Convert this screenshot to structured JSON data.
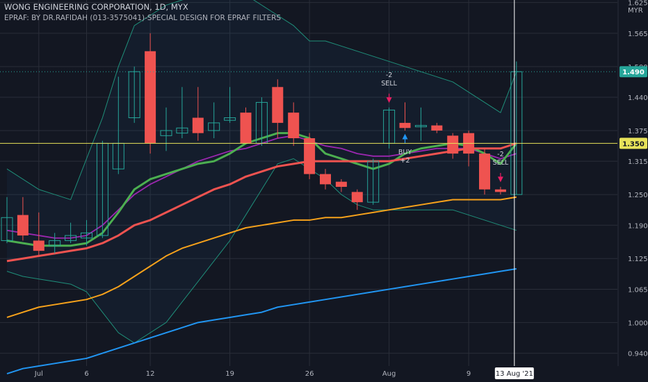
{
  "header": {
    "title": "WONG ENGINEERING CORPORATION, 1D, MYX",
    "subtitle": "EPRAF: BY DR.RAFIDAH (013-3575041)-SPECIAL DESIGN FOR EPRAF FILTERS"
  },
  "currency": "MYR",
  "colors": {
    "background": "#131722",
    "grid": "#2a2e39",
    "text": "#b2b5be",
    "up": "#26a69a",
    "down": "#ef5350",
    "bb_bands": "#1f8f7a",
    "ema_fast": "#4caf50",
    "ema_mid": "#ef5350",
    "ema_slow": "#9c27b0",
    "ma_orange": "#f7a21b",
    "ma_blue": "#2196f3",
    "price_line": "#e8e35a",
    "crosshair": "#ffffff"
  },
  "chart_data": {
    "type": "candlestick",
    "title": "WONG ENGINEERING CORPORATION, 1D, MYX",
    "subtitle": "EPRAF: BY DR.RAFIDAH (013-3575041)-SPECIAL DESIGN FOR EPRAF FILTERS",
    "ylim": [
      0.915,
      1.63
    ],
    "y_ticks": [
      "0.940",
      "1.000",
      "1.065",
      "1.125",
      "1.190",
      "1.250",
      "1.315",
      "1.375",
      "1.440",
      "1.500",
      "1.565",
      "1.625"
    ],
    "x_labels": [
      "Jul",
      "6",
      "12",
      "19",
      "26",
      "Aug",
      "9"
    ],
    "x_label_dates": [
      "2021-07-01",
      "2021-07-06",
      "2021-07-12",
      "2021-07-19",
      "2021-07-26",
      "2021-08-02",
      "2021-08-09"
    ],
    "candles": [
      {
        "date": "2021-06-29",
        "open": 1.16,
        "high": 1.245,
        "low": 1.155,
        "close": 1.205
      },
      {
        "date": "2021-06-30",
        "open": 1.21,
        "high": 1.245,
        "low": 1.16,
        "close": 1.17
      },
      {
        "date": "2021-07-01",
        "open": 1.16,
        "high": 1.215,
        "low": 1.13,
        "close": 1.14
      },
      {
        "date": "2021-07-02",
        "open": 1.15,
        "high": 1.175,
        "low": 1.135,
        "close": 1.16
      },
      {
        "date": "2021-07-05",
        "open": 1.16,
        "high": 1.195,
        "low": 1.155,
        "close": 1.17
      },
      {
        "date": "2021-07-06",
        "open": 1.165,
        "high": 1.2,
        "low": 1.15,
        "close": 1.175
      },
      {
        "date": "2021-07-07",
        "open": 1.17,
        "high": 1.355,
        "low": 1.165,
        "close": 1.35
      },
      {
        "date": "2021-07-08",
        "open": 1.3,
        "high": 1.48,
        "low": 1.29,
        "close": 1.35
      },
      {
        "date": "2021-07-09",
        "open": 1.4,
        "high": 1.5,
        "low": 1.39,
        "close": 1.49
      },
      {
        "date": "2021-07-12",
        "open": 1.53,
        "high": 1.565,
        "low": 1.33,
        "close": 1.35
      },
      {
        "date": "2021-07-13",
        "open": 1.365,
        "high": 1.42,
        "low": 1.335,
        "close": 1.375
      },
      {
        "date": "2021-07-14",
        "open": 1.37,
        "high": 1.46,
        "low": 1.36,
        "close": 1.38
      },
      {
        "date": "2021-07-15",
        "open": 1.4,
        "high": 1.46,
        "low": 1.355,
        "close": 1.37
      },
      {
        "date": "2021-07-16",
        "open": 1.375,
        "high": 1.43,
        "low": 1.36,
        "close": 1.39
      },
      {
        "date": "2021-07-19",
        "open": 1.395,
        "high": 1.46,
        "low": 1.39,
        "close": 1.4
      },
      {
        "date": "2021-07-20",
        "open": 1.41,
        "high": 1.42,
        "low": 1.35,
        "close": 1.35
      },
      {
        "date": "2021-07-21",
        "open": 1.35,
        "high": 1.44,
        "low": 1.345,
        "close": 1.43
      },
      {
        "date": "2021-07-22",
        "open": 1.46,
        "high": 1.475,
        "low": 1.36,
        "close": 1.39
      },
      {
        "date": "2021-07-23",
        "open": 1.41,
        "high": 1.43,
        "low": 1.345,
        "close": 1.36
      },
      {
        "date": "2021-07-26",
        "open": 1.36,
        "high": 1.37,
        "low": 1.28,
        "close": 1.29
      },
      {
        "date": "2021-07-27",
        "open": 1.29,
        "high": 1.3,
        "low": 1.26,
        "close": 1.27
      },
      {
        "date": "2021-07-28",
        "open": 1.275,
        "high": 1.28,
        "low": 1.255,
        "close": 1.265
      },
      {
        "date": "2021-07-29",
        "open": 1.255,
        "high": 1.26,
        "low": 1.22,
        "close": 1.235
      },
      {
        "date": "2021-07-30",
        "open": 1.235,
        "high": 1.32,
        "low": 1.23,
        "close": 1.315
      },
      {
        "date": "2021-08-02",
        "open": 1.35,
        "high": 1.42,
        "low": 1.34,
        "close": 1.415
      },
      {
        "date": "2021-08-03",
        "open": 1.39,
        "high": 1.43,
        "low": 1.375,
        "close": 1.38
      },
      {
        "date": "2021-08-04",
        "open": 1.385,
        "high": 1.42,
        "low": 1.355,
        "close": 1.385
      },
      {
        "date": "2021-08-05",
        "open": 1.385,
        "high": 1.39,
        "low": 1.37,
        "close": 1.375
      },
      {
        "date": "2021-08-06",
        "open": 1.365,
        "high": 1.37,
        "low": 1.32,
        "close": 1.33
      },
      {
        "date": "2021-08-09",
        "open": 1.37,
        "high": 1.375,
        "low": 1.305,
        "close": 1.33
      },
      {
        "date": "2021-08-10",
        "open": 1.33,
        "high": 1.34,
        "low": 1.25,
        "close": 1.26
      },
      {
        "date": "2021-08-11",
        "open": 1.26,
        "high": 1.265,
        "low": 1.25,
        "close": 1.255
      },
      {
        "date": "2021-08-13",
        "open": 1.25,
        "high": 1.51,
        "low": 1.25,
        "close": 1.49
      }
    ],
    "series": [
      {
        "key": "bb_upper",
        "values": [
          1.3,
          1.28,
          1.26,
          1.25,
          1.24,
          1.32,
          1.4,
          1.5,
          1.58,
          1.6,
          1.62,
          1.63,
          1.64,
          1.65,
          1.65,
          1.64,
          1.62,
          1.6,
          1.58,
          1.55,
          1.55,
          1.54,
          1.53,
          1.52,
          1.51,
          1.5,
          1.49,
          1.48,
          1.47,
          1.45,
          1.43,
          1.41,
          1.49
        ]
      },
      {
        "key": "bb_lower",
        "values": [
          1.1,
          1.09,
          1.085,
          1.08,
          1.075,
          1.06,
          1.02,
          0.98,
          0.96,
          0.98,
          1.0,
          1.04,
          1.08,
          1.12,
          1.16,
          1.21,
          1.26,
          1.31,
          1.32,
          1.3,
          1.28,
          1.25,
          1.23,
          1.22,
          1.22,
          1.22,
          1.22,
          1.22,
          1.22,
          1.21,
          1.2,
          1.19,
          1.18
        ]
      },
      {
        "key": "ema_slow",
        "values": [
          1.18,
          1.175,
          1.17,
          1.165,
          1.165,
          1.17,
          1.19,
          1.22,
          1.25,
          1.27,
          1.285,
          1.3,
          1.315,
          1.325,
          1.335,
          1.34,
          1.35,
          1.36,
          1.365,
          1.355,
          1.345,
          1.34,
          1.33,
          1.325,
          1.325,
          1.33,
          1.335,
          1.34,
          1.34,
          1.34,
          1.33,
          1.32,
          1.33
        ]
      },
      {
        "key": "ema_fast",
        "values": [
          1.16,
          1.155,
          1.15,
          1.15,
          1.15,
          1.155,
          1.175,
          1.215,
          1.26,
          1.28,
          1.29,
          1.3,
          1.31,
          1.315,
          1.33,
          1.35,
          1.36,
          1.37,
          1.37,
          1.36,
          1.33,
          1.32,
          1.31,
          1.3,
          1.31,
          1.33,
          1.34,
          1.345,
          1.35,
          1.345,
          1.33,
          1.31,
          1.35
        ]
      },
      {
        "key": "ema_mid",
        "values": [
          1.12,
          1.125,
          1.13,
          1.135,
          1.14,
          1.145,
          1.155,
          1.17,
          1.19,
          1.2,
          1.215,
          1.23,
          1.245,
          1.26,
          1.27,
          1.285,
          1.295,
          1.305,
          1.31,
          1.315,
          1.315,
          1.315,
          1.315,
          1.315,
          1.315,
          1.32,
          1.325,
          1.33,
          1.335,
          1.34,
          1.34,
          1.34,
          1.35
        ]
      },
      {
        "key": "ma_orange",
        "values": [
          1.01,
          1.02,
          1.03,
          1.035,
          1.04,
          1.045,
          1.055,
          1.07,
          1.09,
          1.11,
          1.13,
          1.145,
          1.155,
          1.165,
          1.175,
          1.185,
          1.19,
          1.195,
          1.2,
          1.2,
          1.205,
          1.205,
          1.21,
          1.215,
          1.22,
          1.225,
          1.23,
          1.235,
          1.24,
          1.24,
          1.24,
          1.24,
          1.245
        ]
      },
      {
        "key": "ma_blue",
        "values": [
          0.9,
          0.91,
          0.915,
          0.92,
          0.925,
          0.93,
          0.94,
          0.95,
          0.96,
          0.97,
          0.98,
          0.99,
          1.0,
          1.005,
          1.01,
          1.015,
          1.02,
          1.03,
          1.035,
          1.04,
          1.045,
          1.05,
          1.055,
          1.06,
          1.065,
          1.07,
          1.075,
          1.08,
          1.085,
          1.09,
          1.095,
          1.1,
          1.105
        ]
      }
    ],
    "signals": [
      {
        "type": "sell",
        "label": "-2\nSELL",
        "candle_index": 24
      },
      {
        "type": "buy",
        "label": "BUY\n+2",
        "candle_index": 25
      },
      {
        "type": "sell",
        "label": "-2\nSELL",
        "candle_index": 31
      }
    ],
    "price_labels": [
      {
        "value": 1.49,
        "text": "1.490",
        "color": "#26a69a"
      },
      {
        "value": 1.35,
        "text": "1.350",
        "color": "#e8e35a"
      }
    ],
    "crosshair": {
      "date": "2021-08-13",
      "label": "13 Aug '21"
    }
  }
}
